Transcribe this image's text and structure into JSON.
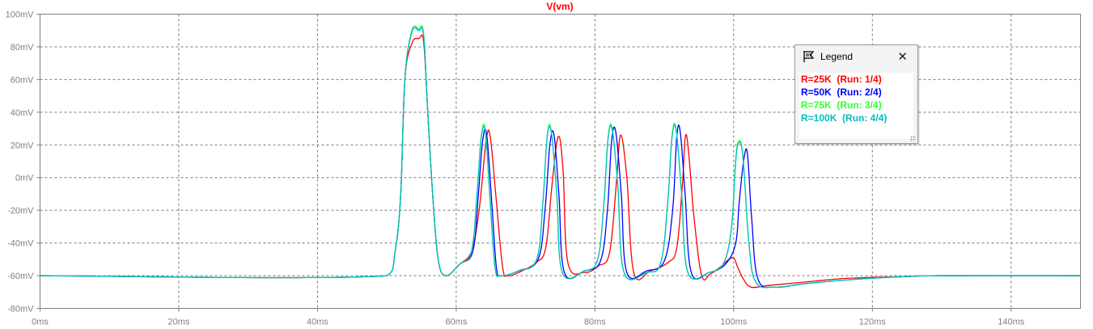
{
  "chart_data": {
    "type": "line",
    "title": "V(vm)",
    "title_color": "#ff0000",
    "xlabel": "",
    "ylabel": "",
    "x_unit": "ms",
    "y_unit": "mV",
    "xlim": [
      0,
      150
    ],
    "ylim": [
      -80,
      100
    ],
    "x_ticks": [
      0,
      20,
      40,
      60,
      80,
      100,
      120,
      140
    ],
    "y_ticks": [
      -80,
      -60,
      -40,
      -20,
      0,
      20,
      40,
      60,
      80,
      100
    ],
    "x_tick_labels": [
      "0ms",
      "20ms",
      "40ms",
      "60ms",
      "80ms",
      "100ms",
      "120ms",
      "140ms"
    ],
    "y_tick_labels": [
      "-80mV",
      "-60mV",
      "-40mV",
      "-20mV",
      "0mV",
      "20mV",
      "40mV",
      "60mV",
      "80mV",
      "100mV"
    ],
    "grid": true,
    "legend_position": "top-right",
    "series": [
      {
        "name": "R=25K  (Run: 1/4)",
        "color": "#ff0000",
        "x": [
          0,
          50,
          51.2,
          52,
          52.6,
          53.6,
          54.6,
          55.3,
          55.9,
          56.6,
          57.4,
          58.5,
          60.5,
          62.2,
          63.3,
          64.3,
          64.9,
          65.8,
          66.7,
          67.5,
          69.5,
          71.5,
          72.9,
          73.8,
          74.7,
          75.4,
          76.1,
          78.5,
          80.5,
          82.1,
          83.1,
          83.7,
          84.6,
          85.6,
          88,
          90.5,
          91.8,
          92.6,
          93.2,
          94.3,
          95.4,
          96.6,
          98,
          99.8,
          100.6,
          101.4,
          102.5,
          105,
          110,
          115,
          120,
          125,
          130,
          150
        ],
        "y": [
          -60,
          -60,
          -45,
          -10,
          60,
          82,
          85,
          83,
          40,
          -10,
          -50,
          -60,
          -53,
          -45,
          -20,
          22,
          25,
          -15,
          -55,
          -60,
          -57,
          -52,
          -43,
          -5,
          25,
          5,
          -52,
          -58,
          -54,
          -46,
          -3,
          26,
          0,
          -58,
          -57,
          -52,
          -43,
          -5,
          26,
          -25,
          -60,
          -59,
          -55,
          -49,
          -55,
          -62,
          -67,
          -66,
          -64,
          -62,
          -61,
          -60.5,
          -60,
          -60
        ]
      },
      {
        "name": "R=50K  (Run: 2/4)",
        "color": "#0000ff",
        "x": [
          0,
          50,
          51.2,
          52,
          52.6,
          53.6,
          54.6,
          55.3,
          55.9,
          56.6,
          57.4,
          58.5,
          60.5,
          62.4,
          63.2,
          63.8,
          64.4,
          65.2,
          65.8,
          66.5,
          69,
          71.8,
          72.8,
          73.5,
          74.1,
          74.8,
          75.6,
          78.5,
          80.8,
          81.8,
          82.4,
          83,
          83.8,
          84.6,
          87.5,
          90,
          91.2,
          91.8,
          92.3,
          93,
          93.9,
          96.5,
          98.8,
          100.3,
          100.8,
          101.5,
          102,
          102.6,
          103.5,
          106,
          110,
          115,
          120,
          125,
          130,
          150
        ],
        "y": [
          -60,
          -60,
          -45,
          -10,
          60,
          89,
          90,
          87,
          40,
          -10,
          -50,
          -60,
          -53,
          -45,
          -10,
          22,
          26,
          -20,
          -55,
          -60,
          -57,
          -50,
          -20,
          20,
          26,
          -10,
          -58,
          -57,
          -51,
          -20,
          22,
          28,
          -10,
          -58,
          -57,
          -51,
          -20,
          25,
          28,
          -10,
          -58,
          -58,
          -53,
          -40,
          -15,
          12,
          14,
          -25,
          -62,
          -67,
          -65,
          -63,
          -61.5,
          -60.5,
          -60,
          -60
        ]
      },
      {
        "name": "R=75K  (Run: 3/4)",
        "color": "#33ff33",
        "x": [
          0,
          50,
          51.2,
          52,
          52.6,
          53.6,
          54.6,
          55.3,
          55.9,
          56.6,
          57.4,
          58.5,
          60.5,
          62.2,
          63,
          63.6,
          64.2,
          64.9,
          65.6,
          66.4,
          69,
          71.6,
          72.5,
          73.1,
          73.7,
          74.5,
          75.3,
          78.5,
          80.4,
          81.3,
          81.9,
          82.5,
          83.3,
          84.2,
          87.5,
          89.5,
          90.5,
          91.1,
          91.7,
          92.5,
          93.4,
          96.5,
          98.6,
          99.7,
          100.2,
          100.6,
          101.3,
          102.2,
          103.2,
          106,
          110,
          115,
          120,
          125,
          130,
          150
        ],
        "y": [
          -60,
          -60,
          -45,
          -10,
          60,
          90,
          91,
          88,
          40,
          -10,
          -50,
          -60,
          -53,
          -45,
          -10,
          25,
          29,
          -15,
          -55,
          -60,
          -57,
          -50,
          -15,
          25,
          29,
          -10,
          -58,
          -57,
          -50,
          -15,
          25,
          30,
          -5,
          -58,
          -58,
          -52,
          -15,
          25,
          30,
          -10,
          -58,
          -58,
          -52,
          -30,
          5,
          21,
          15,
          -40,
          -64,
          -67,
          -65,
          -63,
          -61.5,
          -60.5,
          -60,
          -60
        ]
      },
      {
        "name": "R=100K  (Run: 4/4)",
        "color": "#00c0c0",
        "x": [
          0,
          50,
          51.2,
          52,
          52.6,
          53.6,
          54.6,
          55.3,
          55.9,
          56.6,
          57.4,
          58.5,
          60.5,
          62.2,
          63,
          63.6,
          64.2,
          64.9,
          65.6,
          66.4,
          69,
          71.6,
          72.5,
          73.1,
          73.7,
          74.5,
          75.3,
          78.5,
          80.4,
          81.3,
          81.9,
          82.5,
          83.3,
          84.2,
          87.5,
          89.5,
          90.5,
          91.1,
          91.7,
          92.5,
          93.4,
          96.5,
          98.6,
          99.7,
          100.2,
          100.6,
          101.3,
          102.2,
          103.2,
          106,
          110,
          115,
          120,
          125,
          130,
          150
        ],
        "y": [
          -60,
          -60,
          -45,
          -10,
          60,
          89,
          90,
          87,
          40,
          -10,
          -50,
          -60,
          -53,
          -45,
          -10,
          24,
          28,
          -15,
          -55,
          -60,
          -57,
          -50,
          -15,
          24,
          28,
          -10,
          -58,
          -57,
          -50,
          -15,
          24,
          29,
          -5,
          -58,
          -58,
          -52,
          -15,
          24,
          29,
          -10,
          -58,
          -58,
          -52,
          -30,
          4,
          20,
          14,
          -40,
          -64,
          -67,
          -65,
          -63,
          -61.5,
          -60.5,
          -60,
          -60
        ]
      }
    ]
  },
  "legend": {
    "title": "Legend",
    "close_label": "✕",
    "icon": "legend-flag-icon"
  }
}
